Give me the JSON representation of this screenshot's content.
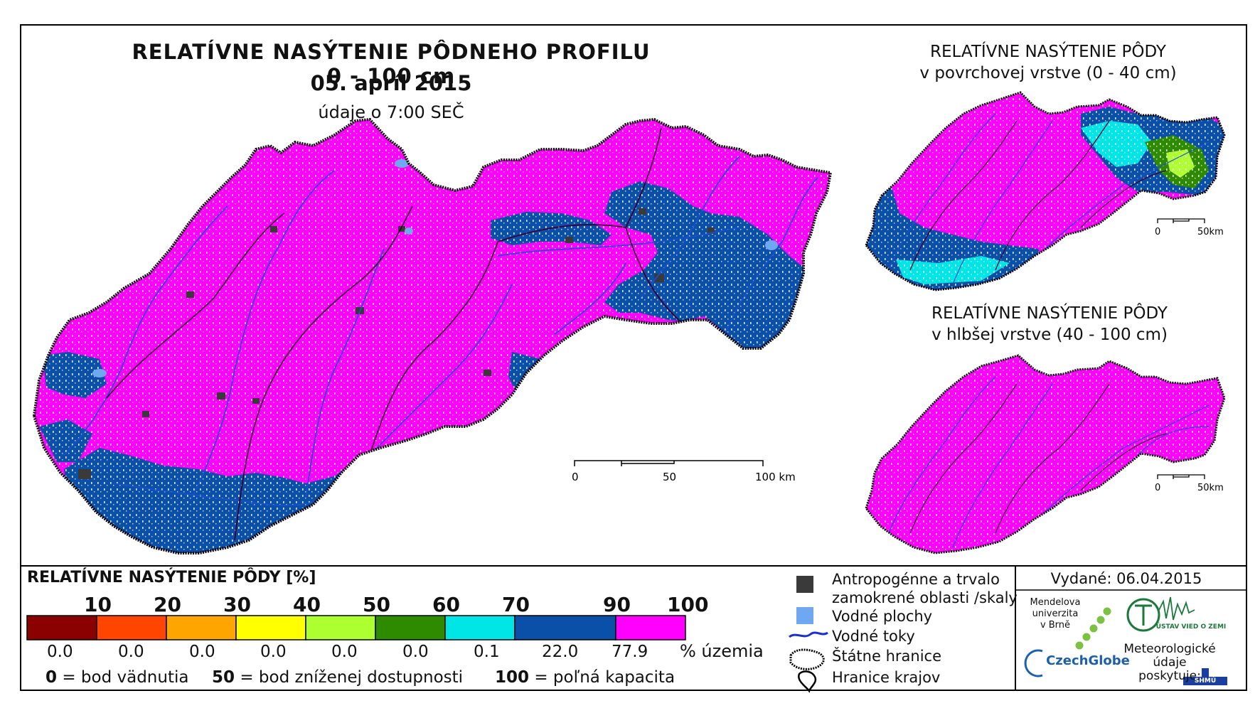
{
  "main": {
    "title": "RELATÍVNE NASÝTENIE PÔDNEHO PROFILU 0 - 100 cm",
    "date": "05. apríl 2015",
    "time_note": "údaje o 7:00 SEČ",
    "scale_labels": [
      "0",
      "50",
      "100 km"
    ]
  },
  "inset_top": {
    "title_line1": "RELATÍVNE NASÝTENIE PÔDY",
    "title_line2": "v povrchovej vrstve (0 - 40 cm)",
    "scale_labels": [
      "0",
      "50km"
    ]
  },
  "inset_bottom": {
    "title_line1": "RELATÍVNE NASÝTENIE PÔDY",
    "title_line2": "v hlbšej vrstve (40 - 100 cm)",
    "scale_labels": [
      "0",
      "50km"
    ]
  },
  "legend": {
    "title": "RELATÍVNE NASÝTENIE PÔDY [%]",
    "thresholds": [
      "10",
      "20",
      "30",
      "40",
      "50",
      "60",
      "70",
      "90",
      "100"
    ],
    "classes": [
      {
        "color": "#8B0000",
        "share": "0.0"
      },
      {
        "color": "#FF4500",
        "share": "0.0"
      },
      {
        "color": "#FFA500",
        "share": "0.0"
      },
      {
        "color": "#FFFF00",
        "share": "0.0"
      },
      {
        "color": "#ADFF2F",
        "share": "0.0"
      },
      {
        "color": "#2E8B00",
        "share": "0.0"
      },
      {
        "color": "#00E5E5",
        "share": "0.1"
      },
      {
        "color": "#0A4FA8",
        "share": "22.0"
      },
      {
        "color": "#FF00FF",
        "share": "77.9"
      }
    ],
    "unit": "% územia",
    "note_0_num": "0",
    "note_0_text": "= bod vädnutia",
    "note_50_num": "50",
    "note_50_text": "= bod zníženej dostupnosti",
    "note_100_num": "100",
    "note_100_text": "= poľná kapacita"
  },
  "symbols": {
    "anthropogenic_line1": "Antropogénne a trvalo",
    "anthropogenic_line2": "zamokrené oblasti /skaly",
    "water_areas": "Vodné plochy",
    "rivers": "Vodné toky",
    "state_border": "Štátne hranice",
    "region_border": "Hranice krajov"
  },
  "credits": {
    "issued": "Vydané: 06.04.2015",
    "mendel_line1": "Mendelova",
    "mendel_line2": "univerzita",
    "mendel_line3": "v Brně",
    "czechglobe": "CzechGlobe",
    "uvoz": "ÚSTAV VIED O ZEMI",
    "met_line1": "Meteorologické",
    "met_line2": "údaje",
    "met_line3": "poskytuje:",
    "shmu": "SHMÚ"
  },
  "colors": {
    "magenta": "#FF00FF",
    "blue": "#0A4FA8",
    "cyan": "#00E5E5",
    "anthropogenic": "#3a3a3a",
    "water": "#6fa8f0"
  }
}
